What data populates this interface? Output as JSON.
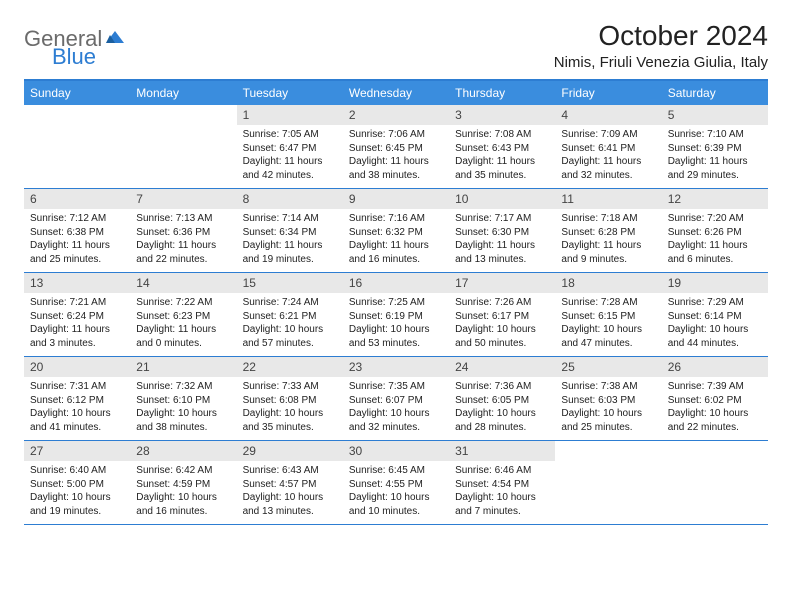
{
  "logo": {
    "text1": "General",
    "text2": "Blue"
  },
  "title": "October 2024",
  "location": "Nimis, Friuli Venezia Giulia, Italy",
  "colors": {
    "header_bg": "#3a8dde",
    "rule": "#2d7dd2",
    "daynum_bg": "#e8e8e8",
    "logo_gray": "#6b6b6b",
    "logo_blue": "#2d7dd2"
  },
  "day_names": [
    "Sunday",
    "Monday",
    "Tuesday",
    "Wednesday",
    "Thursday",
    "Friday",
    "Saturday"
  ],
  "leading_blanks": 2,
  "days": [
    {
      "n": 1,
      "sr": "7:05 AM",
      "ss": "6:47 PM",
      "dl": "11 hours and 42 minutes."
    },
    {
      "n": 2,
      "sr": "7:06 AM",
      "ss": "6:45 PM",
      "dl": "11 hours and 38 minutes."
    },
    {
      "n": 3,
      "sr": "7:08 AM",
      "ss": "6:43 PM",
      "dl": "11 hours and 35 minutes."
    },
    {
      "n": 4,
      "sr": "7:09 AM",
      "ss": "6:41 PM",
      "dl": "11 hours and 32 minutes."
    },
    {
      "n": 5,
      "sr": "7:10 AM",
      "ss": "6:39 PM",
      "dl": "11 hours and 29 minutes."
    },
    {
      "n": 6,
      "sr": "7:12 AM",
      "ss": "6:38 PM",
      "dl": "11 hours and 25 minutes."
    },
    {
      "n": 7,
      "sr": "7:13 AM",
      "ss": "6:36 PM",
      "dl": "11 hours and 22 minutes."
    },
    {
      "n": 8,
      "sr": "7:14 AM",
      "ss": "6:34 PM",
      "dl": "11 hours and 19 minutes."
    },
    {
      "n": 9,
      "sr": "7:16 AM",
      "ss": "6:32 PM",
      "dl": "11 hours and 16 minutes."
    },
    {
      "n": 10,
      "sr": "7:17 AM",
      "ss": "6:30 PM",
      "dl": "11 hours and 13 minutes."
    },
    {
      "n": 11,
      "sr": "7:18 AM",
      "ss": "6:28 PM",
      "dl": "11 hours and 9 minutes."
    },
    {
      "n": 12,
      "sr": "7:20 AM",
      "ss": "6:26 PM",
      "dl": "11 hours and 6 minutes."
    },
    {
      "n": 13,
      "sr": "7:21 AM",
      "ss": "6:24 PM",
      "dl": "11 hours and 3 minutes."
    },
    {
      "n": 14,
      "sr": "7:22 AM",
      "ss": "6:23 PM",
      "dl": "11 hours and 0 minutes."
    },
    {
      "n": 15,
      "sr": "7:24 AM",
      "ss": "6:21 PM",
      "dl": "10 hours and 57 minutes."
    },
    {
      "n": 16,
      "sr": "7:25 AM",
      "ss": "6:19 PM",
      "dl": "10 hours and 53 minutes."
    },
    {
      "n": 17,
      "sr": "7:26 AM",
      "ss": "6:17 PM",
      "dl": "10 hours and 50 minutes."
    },
    {
      "n": 18,
      "sr": "7:28 AM",
      "ss": "6:15 PM",
      "dl": "10 hours and 47 minutes."
    },
    {
      "n": 19,
      "sr": "7:29 AM",
      "ss": "6:14 PM",
      "dl": "10 hours and 44 minutes."
    },
    {
      "n": 20,
      "sr": "7:31 AM",
      "ss": "6:12 PM",
      "dl": "10 hours and 41 minutes."
    },
    {
      "n": 21,
      "sr": "7:32 AM",
      "ss": "6:10 PM",
      "dl": "10 hours and 38 minutes."
    },
    {
      "n": 22,
      "sr": "7:33 AM",
      "ss": "6:08 PM",
      "dl": "10 hours and 35 minutes."
    },
    {
      "n": 23,
      "sr": "7:35 AM",
      "ss": "6:07 PM",
      "dl": "10 hours and 32 minutes."
    },
    {
      "n": 24,
      "sr": "7:36 AM",
      "ss": "6:05 PM",
      "dl": "10 hours and 28 minutes."
    },
    {
      "n": 25,
      "sr": "7:38 AM",
      "ss": "6:03 PM",
      "dl": "10 hours and 25 minutes."
    },
    {
      "n": 26,
      "sr": "7:39 AM",
      "ss": "6:02 PM",
      "dl": "10 hours and 22 minutes."
    },
    {
      "n": 27,
      "sr": "6:40 AM",
      "ss": "5:00 PM",
      "dl": "10 hours and 19 minutes."
    },
    {
      "n": 28,
      "sr": "6:42 AM",
      "ss": "4:59 PM",
      "dl": "10 hours and 16 minutes."
    },
    {
      "n": 29,
      "sr": "6:43 AM",
      "ss": "4:57 PM",
      "dl": "10 hours and 13 minutes."
    },
    {
      "n": 30,
      "sr": "6:45 AM",
      "ss": "4:55 PM",
      "dl": "10 hours and 10 minutes."
    },
    {
      "n": 31,
      "sr": "6:46 AM",
      "ss": "4:54 PM",
      "dl": "10 hours and 7 minutes."
    }
  ],
  "labels": {
    "sunrise": "Sunrise:",
    "sunset": "Sunset:",
    "daylight": "Daylight:"
  }
}
